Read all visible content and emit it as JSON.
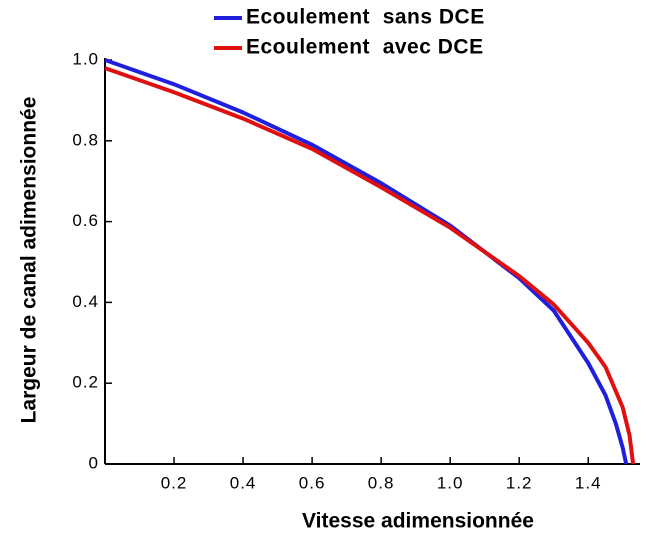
{
  "chart_data": {
    "type": "line",
    "xlabel": "Vitesse adimensionnée",
    "ylabel": "Largeur de canal adimensionnée",
    "xlim": [
      0,
      1.55
    ],
    "ylim": [
      0,
      1
    ],
    "xticks": [
      0.2,
      0.4,
      0.6,
      0.8,
      {
        "value": 1,
        "label": "1.0"
      },
      1.2,
      1.4
    ],
    "yticks": [
      0,
      0.2,
      0.4,
      0.6,
      0.8,
      {
        "value": 1,
        "label": "1.0"
      }
    ],
    "legend": "top-right",
    "series": [
      {
        "name": "Ecoulement  sans DCE",
        "color": "#1f1fdd",
        "x": [
          0,
          0.2,
          0.4,
          0.6,
          0.8,
          1.0,
          1.2,
          1.3,
          1.4,
          1.45,
          1.48,
          1.5,
          1.51
        ],
        "values": [
          1.0,
          0.94,
          0.87,
          0.79,
          0.695,
          0.59,
          0.46,
          0.38,
          0.25,
          0.17,
          0.1,
          0.04,
          0
        ]
      },
      {
        "name": "Ecoulement  avec DCE",
        "color": "#e01010",
        "x": [
          0,
          0.2,
          0.4,
          0.6,
          0.8,
          1.0,
          1.2,
          1.3,
          1.4,
          1.45,
          1.5,
          1.52,
          1.53
        ],
        "values": [
          0.98,
          0.92,
          0.855,
          0.78,
          0.685,
          0.585,
          0.465,
          0.395,
          0.3,
          0.24,
          0.14,
          0.07,
          0
        ]
      }
    ]
  }
}
